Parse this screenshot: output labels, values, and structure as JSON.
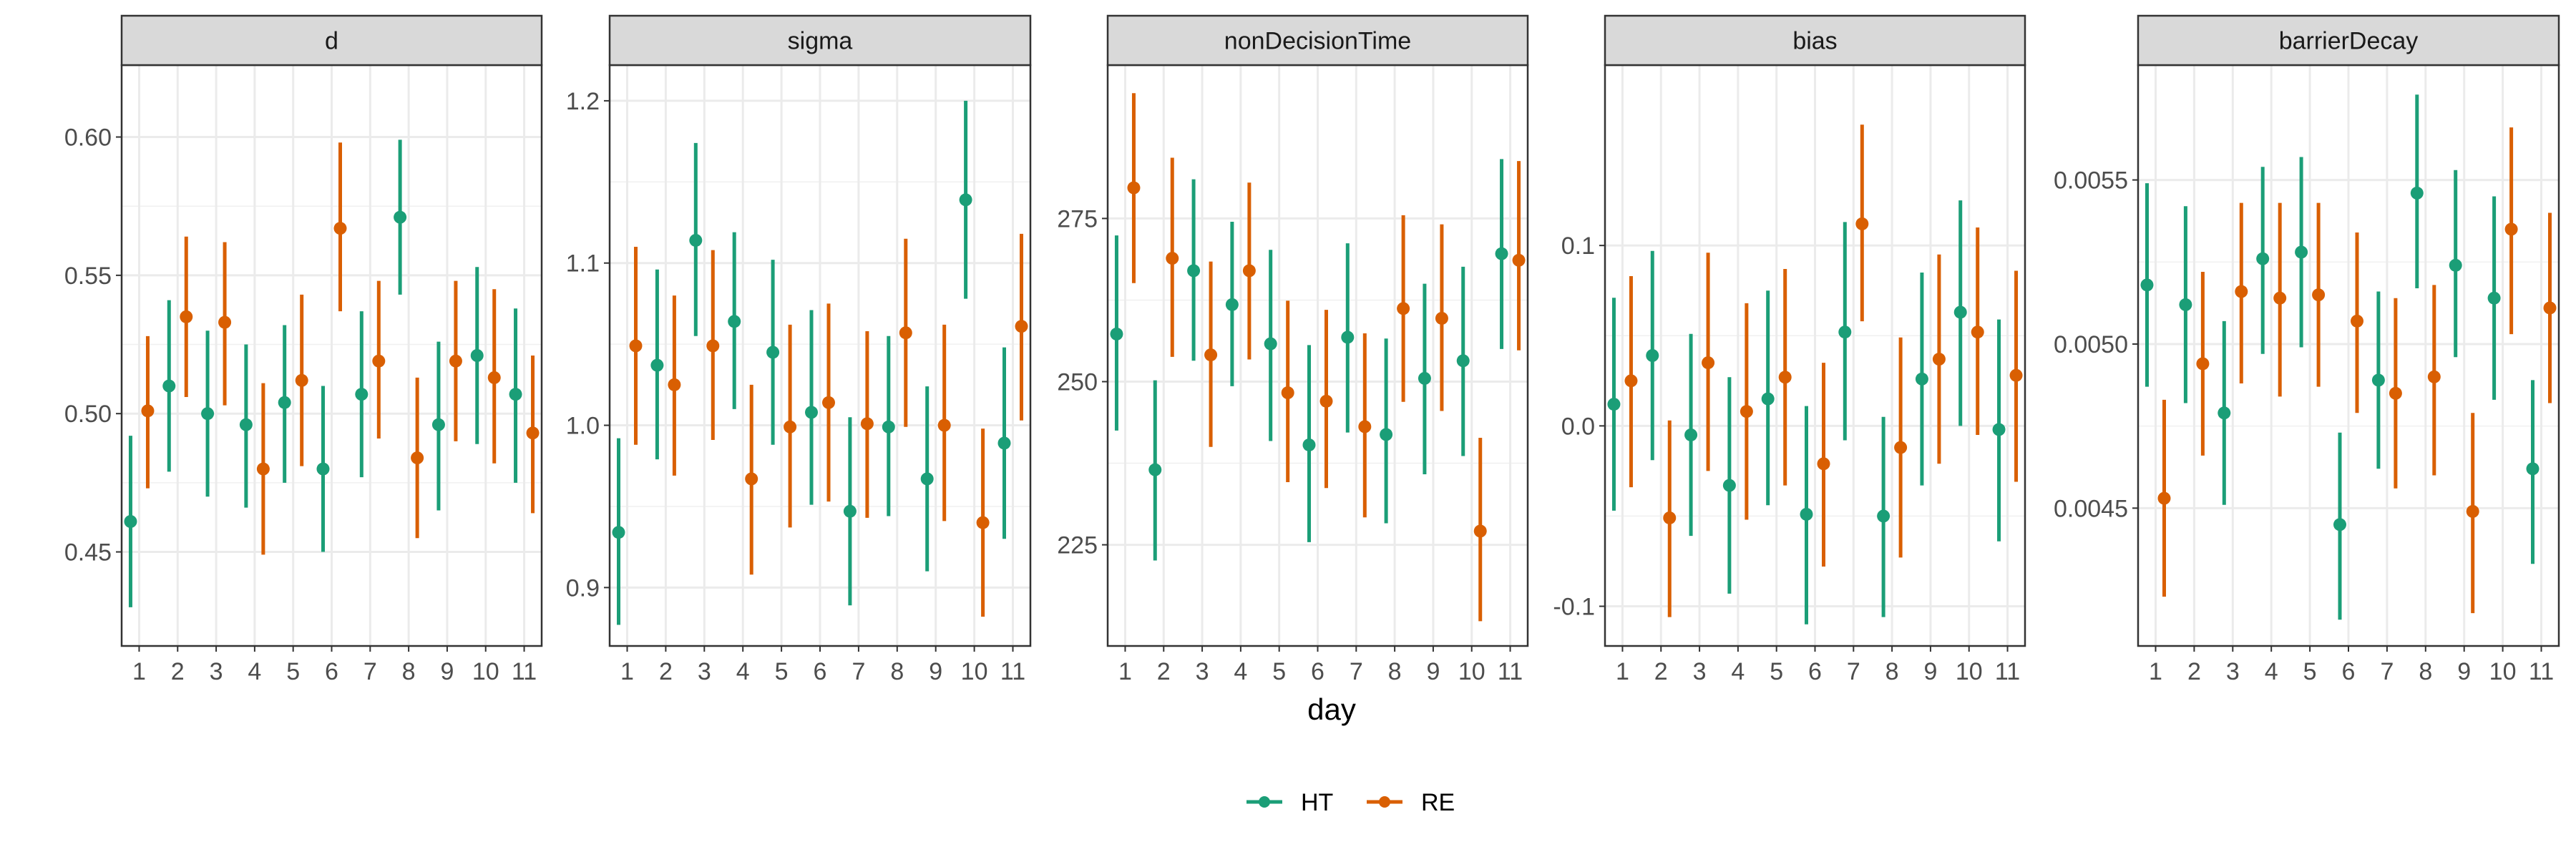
{
  "chart_data": {
    "type": "scatter",
    "subtype": "pointrange-facets",
    "xlabel": "day",
    "ylabel": "",
    "x": [
      1,
      2,
      3,
      4,
      5,
      6,
      7,
      8,
      9,
      10,
      11
    ],
    "grid": true,
    "legend_position": "bottom",
    "colors": {
      "HT": "#1b9e77",
      "RE": "#d95f02"
    },
    "legend": [
      "HT",
      "RE"
    ],
    "facets": [
      {
        "title": "d",
        "ylim": [
          0.416,
          0.626
        ],
        "yticks": [
          0.45,
          0.5,
          0.55,
          0.6
        ],
        "ytick_labels": [
          "0.45",
          "0.50",
          "0.55",
          "0.60"
        ],
        "series": [
          {
            "name": "HT",
            "y": [
              0.461,
              0.51,
              0.5,
              0.496,
              0.504,
              0.48,
              0.507,
              0.571,
              0.496,
              0.521,
              0.507
            ],
            "ymin": [
              0.43,
              0.479,
              0.47,
              0.466,
              0.475,
              0.45,
              0.477,
              0.543,
              0.465,
              0.489,
              0.475
            ],
            "ymax": [
              0.492,
              0.541,
              0.53,
              0.525,
              0.532,
              0.51,
              0.537,
              0.599,
              0.526,
              0.553,
              0.538
            ]
          },
          {
            "name": "RE",
            "y": [
              0.501,
              0.535,
              0.533,
              0.48,
              0.512,
              0.567,
              0.519,
              0.484,
              0.519,
              0.513,
              0.493
            ],
            "ymin": [
              0.473,
              0.506,
              0.503,
              0.449,
              0.481,
              0.537,
              0.491,
              0.455,
              0.49,
              0.482,
              0.464
            ],
            "ymax": [
              0.528,
              0.564,
              0.562,
              0.511,
              0.543,
              0.598,
              0.548,
              0.513,
              0.548,
              0.545,
              0.521
            ]
          }
        ]
      },
      {
        "title": "sigma",
        "ylim": [
          0.864,
          1.222
        ],
        "yticks": [
          0.9,
          1.0,
          1.1,
          1.2
        ],
        "ytick_labels": [
          "0.9",
          "1.0",
          "1.1",
          "1.2"
        ],
        "series": [
          {
            "name": "HT",
            "y": [
              0.934,
              1.037,
              1.114,
              1.064,
              1.045,
              1.008,
              0.947,
              0.999,
              0.967,
              1.139,
              0.989
            ],
            "ymin": [
              0.877,
              0.979,
              1.055,
              1.01,
              0.988,
              0.951,
              0.889,
              0.944,
              0.91,
              1.078,
              0.93
            ],
            "ymax": [
              0.992,
              1.096,
              1.174,
              1.119,
              1.102,
              1.071,
              1.005,
              1.055,
              1.024,
              1.2,
              1.048
            ]
          },
          {
            "name": "RE",
            "y": [
              1.049,
              1.025,
              1.049,
              0.967,
              0.999,
              1.014,
              1.001,
              1.057,
              1.0,
              0.94,
              1.061
            ],
            "ymin": [
              0.988,
              0.969,
              0.991,
              0.908,
              0.937,
              0.953,
              0.943,
              0.999,
              0.941,
              0.882,
              1.003
            ],
            "ymax": [
              1.11,
              1.08,
              1.108,
              1.025,
              1.062,
              1.075,
              1.058,
              1.115,
              1.062,
              0.998,
              1.118
            ]
          }
        ]
      },
      {
        "title": "nonDecisionTime",
        "ylim": [
          209.5,
          298.5
        ],
        "yticks": [
          225,
          250,
          275
        ],
        "ytick_labels": [
          "225",
          "250",
          "275"
        ],
        "series": [
          {
            "name": "HT",
            "y": [
              257.3,
              236.5,
              267.0,
              261.8,
              255.8,
              240.3,
              256.8,
              241.9,
              250.5,
              253.2,
              269.6
            ],
            "ymin": [
              242.5,
              222.6,
              253.2,
              249.3,
              240.9,
              225.4,
              242.2,
              228.3,
              235.8,
              238.6,
              255.0
            ],
            "ymax": [
              272.4,
              250.2,
              281.0,
              274.5,
              270.2,
              255.6,
              271.2,
              256.6,
              265.0,
              267.6,
              284.1
            ]
          },
          {
            "name": "RE",
            "y": [
              279.7,
              268.9,
              254.1,
              267.0,
              248.3,
              247.0,
              243.1,
              261.2,
              259.7,
              227.1,
              268.6
            ],
            "ymin": [
              265.1,
              253.8,
              240.0,
              253.4,
              234.6,
              233.7,
              229.2,
              246.9,
              245.5,
              213.3,
              254.8
            ],
            "ymax": [
              294.2,
              284.3,
              268.4,
              280.5,
              262.4,
              261.0,
              257.4,
              275.5,
              274.1,
              241.4,
              283.8
            ]
          }
        ]
      },
      {
        "title": "bias",
        "ylim": [
          -0.122,
          0.2
        ],
        "yticks": [
          -0.1,
          0.0,
          0.1
        ],
        "ytick_labels": [
          "-0.1",
          "0.0",
          "0.1"
        ],
        "series": [
          {
            "name": "HT",
            "y": [
              0.012,
              0.039,
              -0.005,
              -0.033,
              0.015,
              -0.049,
              0.052,
              -0.05,
              0.026,
              0.063,
              -0.002
            ],
            "ymin": [
              -0.047,
              -0.019,
              -0.061,
              -0.093,
              -0.044,
              -0.11,
              -0.008,
              -0.106,
              -0.033,
              0.0,
              -0.064
            ],
            "ymax": [
              0.071,
              0.097,
              0.051,
              0.027,
              0.075,
              0.011,
              0.113,
              0.005,
              0.085,
              0.125,
              0.059
            ]
          },
          {
            "name": "RE",
            "y": [
              0.025,
              -0.051,
              0.035,
              0.008,
              0.027,
              -0.021,
              0.112,
              -0.012,
              0.037,
              0.052,
              0.028
            ],
            "ymin": [
              -0.034,
              -0.106,
              -0.025,
              -0.052,
              -0.033,
              -0.078,
              0.058,
              -0.073,
              -0.021,
              -0.005,
              -0.031
            ],
            "ymax": [
              0.083,
              0.003,
              0.096,
              0.068,
              0.087,
              0.035,
              0.167,
              0.049,
              0.095,
              0.11,
              0.086
            ]
          }
        ]
      },
      {
        "title": "barrierDecay",
        "ylim": [
          0.00408,
          0.00585
        ],
        "yticks": [
          0.0045,
          0.005,
          0.0055
        ],
        "ytick_labels": [
          "0.0045",
          "0.0050",
          "0.0055"
        ],
        "series": [
          {
            "name": "HT",
            "y": [
              0.00518,
              0.00512,
              0.00479,
              0.00526,
              0.00528,
              0.00445,
              0.00489,
              0.00546,
              0.00524,
              0.00514,
              0.00462
            ],
            "ymin": [
              0.00487,
              0.00482,
              0.00451,
              0.00497,
              0.00499,
              0.00416,
              0.00462,
              0.00517,
              0.00496,
              0.00483,
              0.00433
            ],
            "ymax": [
              0.00549,
              0.00542,
              0.00507,
              0.00554,
              0.00557,
              0.00473,
              0.00516,
              0.00576,
              0.00553,
              0.00545,
              0.00489
            ]
          },
          {
            "name": "RE",
            "y": [
              0.00453,
              0.00494,
              0.00516,
              0.00514,
              0.00515,
              0.00507,
              0.00485,
              0.0049,
              0.00449,
              0.00535,
              0.00511
            ],
            "ymin": [
              0.00423,
              0.00466,
              0.00488,
              0.00484,
              0.00487,
              0.00479,
              0.00456,
              0.0046,
              0.00418,
              0.00503,
              0.00482
            ],
            "ymax": [
              0.00483,
              0.00522,
              0.00543,
              0.00543,
              0.00543,
              0.00534,
              0.00514,
              0.00518,
              0.00479,
              0.00566,
              0.0054
            ]
          }
        ]
      }
    ]
  }
}
